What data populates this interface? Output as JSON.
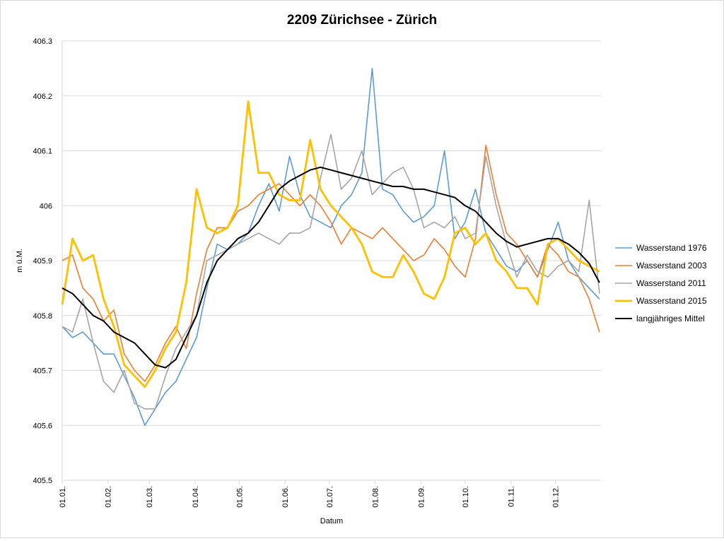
{
  "chart_data": {
    "type": "line",
    "title": "2209 Zürichsee - Zürich",
    "xlabel": "Datum",
    "ylabel": "m ü.M.",
    "ylim": [
      405.5,
      406.3
    ],
    "yticks": [
      "405.5",
      "405.6",
      "405.7",
      "405.8",
      "405.9",
      "406",
      "406.1",
      "406.2",
      "406.3"
    ],
    "xlim_days": [
      0,
      365
    ],
    "xticks": [
      {
        "label": "01.01.",
        "day": 0
      },
      {
        "label": "01.02.",
        "day": 31
      },
      {
        "label": "01.03.",
        "day": 59
      },
      {
        "label": "01.04.",
        "day": 90
      },
      {
        "label": "01.05.",
        "day": 120
      },
      {
        "label": "01.06.",
        "day": 151
      },
      {
        "label": "01.07.",
        "day": 181
      },
      {
        "label": "01.08.",
        "day": 212
      },
      {
        "label": "01.09.",
        "day": 243
      },
      {
        "label": "01.10.",
        "day": 273
      },
      {
        "label": "01.11.",
        "day": 304
      },
      {
        "label": "01.12.",
        "day": 334
      }
    ],
    "grid": true,
    "legend_position": "right",
    "x_days": [
      0,
      7,
      14,
      21,
      28,
      35,
      42,
      49,
      56,
      63,
      70,
      77,
      84,
      91,
      98,
      105,
      112,
      119,
      126,
      133,
      140,
      147,
      154,
      161,
      168,
      175,
      182,
      189,
      196,
      203,
      210,
      217,
      224,
      231,
      238,
      245,
      252,
      259,
      266,
      273,
      280,
      287,
      294,
      301,
      308,
      315,
      322,
      329,
      336,
      343,
      350,
      357,
      364
    ],
    "series": [
      {
        "name": "Wasserstand 1976",
        "color": "#5b9bd5",
        "width": 1.6,
        "values": [
          405.78,
          405.76,
          405.77,
          405.75,
          405.73,
          405.73,
          405.69,
          405.65,
          405.6,
          405.63,
          405.66,
          405.68,
          405.72,
          405.76,
          405.85,
          405.93,
          405.92,
          405.93,
          405.95,
          406.0,
          406.04,
          405.99,
          406.09,
          406.02,
          405.98,
          405.97,
          405.96,
          406.0,
          406.02,
          406.06,
          406.25,
          406.03,
          406.02,
          405.99,
          405.97,
          405.98,
          406.0,
          406.1,
          405.94,
          405.97,
          406.03,
          405.95,
          405.92,
          405.89,
          405.88,
          405.9,
          405.87,
          405.92,
          405.97,
          405.9,
          405.87,
          405.85,
          405.83
        ]
      },
      {
        "name": "Wasserstand 2003",
        "color": "#ed7d31",
        "width": 1.6,
        "values": [
          405.9,
          405.91,
          405.85,
          405.83,
          405.79,
          405.81,
          405.73,
          405.7,
          405.68,
          405.71,
          405.75,
          405.78,
          405.74,
          405.84,
          405.92,
          405.96,
          405.96,
          405.99,
          406.0,
          406.02,
          406.03,
          406.04,
          406.02,
          406.0,
          406.02,
          406.0,
          405.97,
          405.93,
          405.96,
          405.95,
          405.94,
          405.96,
          405.94,
          405.92,
          405.9,
          405.91,
          405.94,
          405.92,
          405.89,
          405.87,
          405.94,
          406.11,
          406.02,
          405.95,
          405.93,
          405.9,
          405.87,
          405.93,
          405.91,
          405.88,
          405.87,
          405.83,
          405.77
        ]
      },
      {
        "name": "Wasserstand 2011",
        "color": "#a5a5a5",
        "width": 1.6,
        "values": [
          405.78,
          405.77,
          405.83,
          405.75,
          405.68,
          405.66,
          405.7,
          405.64,
          405.63,
          405.63,
          405.69,
          405.74,
          405.77,
          405.8,
          405.9,
          405.91,
          405.92,
          405.93,
          405.94,
          405.95,
          405.94,
          405.93,
          405.95,
          405.95,
          405.96,
          406.05,
          406.13,
          406.03,
          406.05,
          406.1,
          406.02,
          406.04,
          406.06,
          406.07,
          406.03,
          405.96,
          405.97,
          405.96,
          405.98,
          405.94,
          405.95,
          406.09,
          406.0,
          405.93,
          405.87,
          405.91,
          405.88,
          405.87,
          405.89,
          405.9,
          405.88,
          406.01,
          405.84
        ]
      },
      {
        "name": "Wasserstand 2015",
        "color": "#ffc000",
        "width": 2.8,
        "values": [
          405.82,
          405.94,
          405.9,
          405.91,
          405.83,
          405.78,
          405.71,
          405.69,
          405.67,
          405.7,
          405.74,
          405.77,
          405.86,
          406.03,
          405.96,
          405.95,
          405.96,
          406.0,
          406.19,
          406.06,
          406.06,
          406.02,
          406.01,
          406.01,
          406.12,
          406.03,
          406.0,
          405.98,
          405.96,
          405.93,
          405.88,
          405.87,
          405.87,
          405.91,
          405.88,
          405.84,
          405.83,
          405.87,
          405.95,
          405.96,
          405.93,
          405.95,
          405.9,
          405.88,
          405.85,
          405.85,
          405.82,
          405.93,
          405.94,
          405.92,
          405.9,
          405.89,
          405.88
        ]
      },
      {
        "name": "langjähriges Mittel",
        "color": "#000000",
        "width": 2,
        "values": [
          405.85,
          405.84,
          405.82,
          405.8,
          405.79,
          405.77,
          405.76,
          405.75,
          405.73,
          405.71,
          405.705,
          405.72,
          405.76,
          405.8,
          405.86,
          405.9,
          405.92,
          405.94,
          405.95,
          405.97,
          406.0,
          406.03,
          406.045,
          406.055,
          406.065,
          406.07,
          406.065,
          406.06,
          406.055,
          406.05,
          406.045,
          406.04,
          406.035,
          406.035,
          406.03,
          406.03,
          406.025,
          406.02,
          406.015,
          406.0,
          405.99,
          405.97,
          405.95,
          405.935,
          405.925,
          405.93,
          405.935,
          405.94,
          405.94,
          405.93,
          405.915,
          405.895,
          405.86
        ]
      }
    ]
  }
}
